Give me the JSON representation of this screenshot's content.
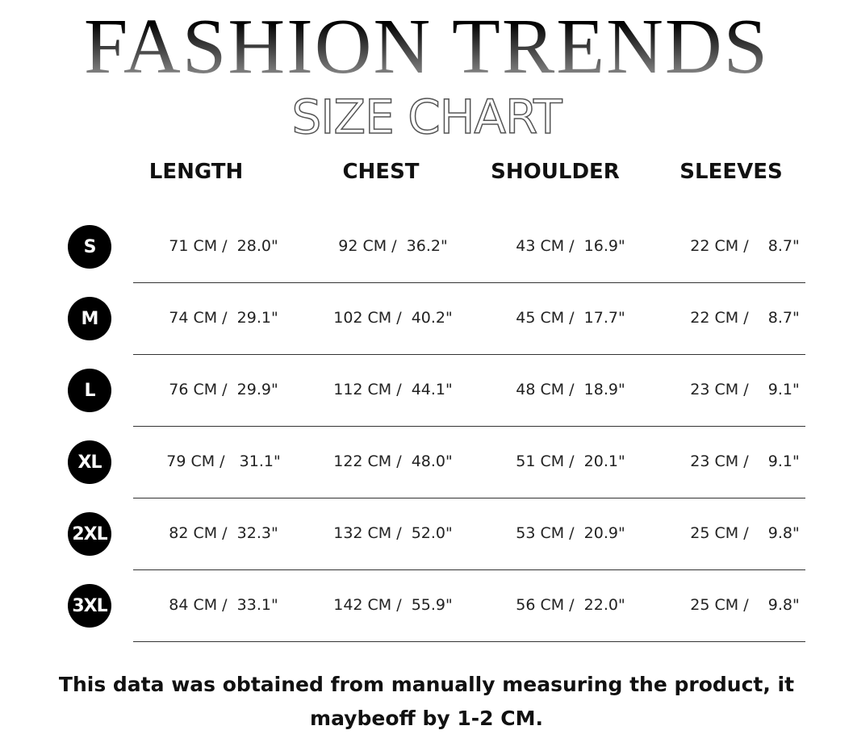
{
  "title": "FASHION TRENDS",
  "subtitle": "SIZE CHART",
  "headers": [
    "LENGTH",
    "CHEST",
    "SHOULDER",
    "SLEEVES"
  ],
  "rows": [
    {
      "size": "S",
      "values": [
        "71 CM /  28.0\"",
        "92 CM /  36.2\"",
        "43 CM /  16.9\"",
        "22 CM /    8.7\""
      ]
    },
    {
      "size": "M",
      "values": [
        "74 CM /  29.1\"",
        "102 CM /  40.2\"",
        "45 CM /  17.7\"",
        "22 CM /    8.7\""
      ]
    },
    {
      "size": "L",
      "values": [
        "76 CM /  29.9\"",
        "112 CM /  44.1\"",
        "48 CM /  18.9\"",
        "23 CM /    9.1\""
      ]
    },
    {
      "size": "XL",
      "values": [
        "79 CM /   31.1\"",
        "122 CM /  48.0\"",
        "51 CM /  20.1\"",
        "23 CM /    9.1\""
      ]
    },
    {
      "size": "2XL",
      "values": [
        "82 CM /  32.3\"",
        "132 CM /  52.0\"",
        "53 CM /  20.9\"",
        "25 CM /    9.8\""
      ]
    },
    {
      "size": "3XL",
      "values": [
        "84 CM /  33.1\"",
        "142 CM /  55.9\"",
        "56 CM /  22.0\"",
        "25 CM /    9.8\""
      ]
    }
  ],
  "note": "This data was obtained from manually measuring the product, it maybeoff by 1-2 CM."
}
